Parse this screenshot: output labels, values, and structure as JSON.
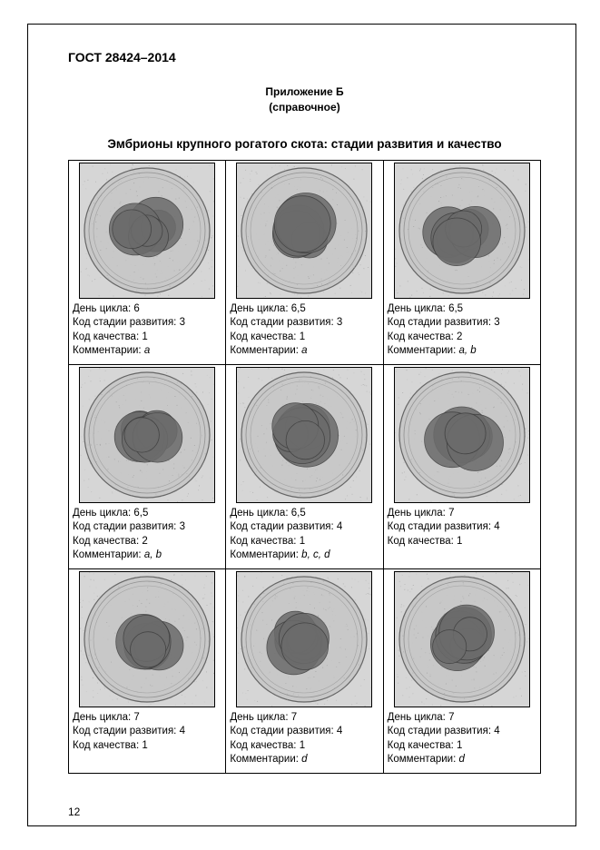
{
  "doc_id": "ГОСТ 28424–2014",
  "appendix_title": "Приложение Б",
  "appendix_note": "(справочное)",
  "section_title": "Эмбрионы крупного рогатого скота: стадии развития и качество",
  "labels": {
    "day": "День цикла:",
    "stage": "Код стадии развития:",
    "quality": "Код качества:",
    "comments": "Комментарии:"
  },
  "page_number": "12",
  "embryo_svg": {
    "size": 150,
    "bg": "#d6d6d6",
    "ring_stroke": "#5a5a5a",
    "ring_fill": "none",
    "mass_fill": "#6b6b6b",
    "mass_stroke": "#3e3e3e",
    "noise": "#9a9a9a",
    "outer_border": "#000000"
  },
  "cells": [
    {
      "day": "6",
      "stage": "3",
      "quality": "1",
      "comments": "a"
    },
    {
      "day": "6,5",
      "stage": "3",
      "quality": "1",
      "comments": "a"
    },
    {
      "day": "6,5",
      "stage": "3",
      "quality": "2",
      "comments": "a, b"
    },
    {
      "day": "6,5",
      "stage": "3",
      "quality": "2",
      "comments": "a, b"
    },
    {
      "day": "6,5",
      "stage": "4",
      "quality": "1",
      "comments": "b, c, d"
    },
    {
      "day": "7",
      "stage": "4",
      "quality": "1",
      "comments": ""
    },
    {
      "day": "7",
      "stage": "4",
      "quality": "1",
      "comments": ""
    },
    {
      "day": "7",
      "stage": "4",
      "quality": "1",
      "comments": "d"
    },
    {
      "day": "7",
      "stage": "4",
      "quality": "1",
      "comments": "d"
    }
  ]
}
